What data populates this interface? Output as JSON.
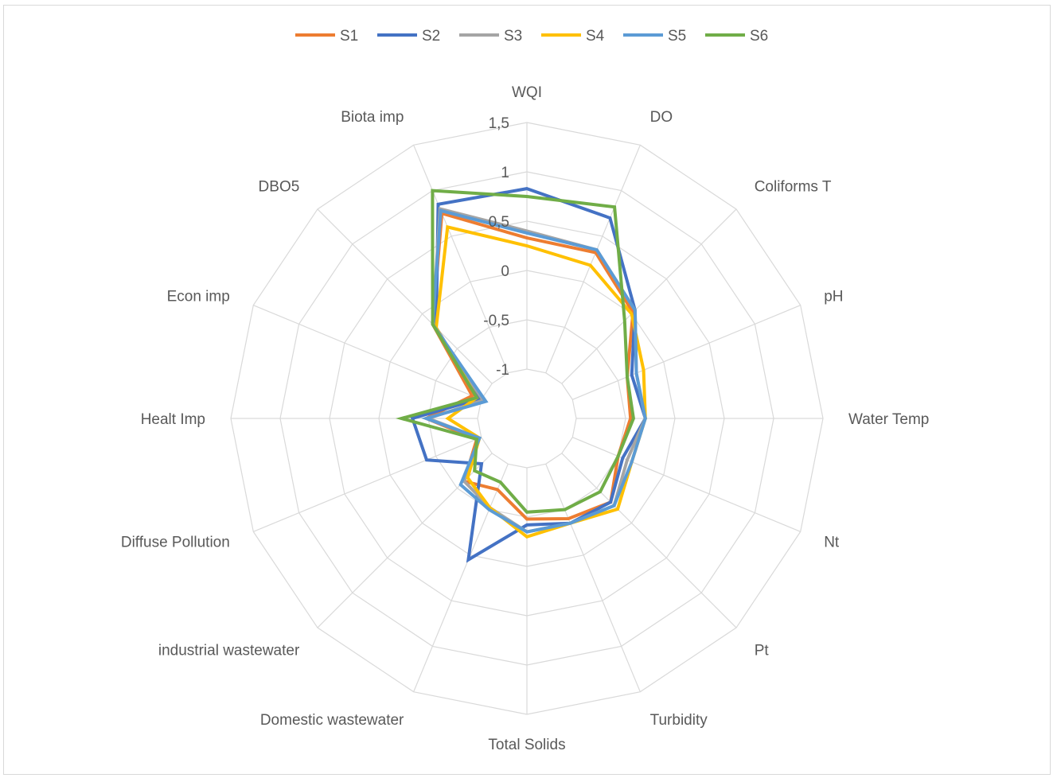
{
  "chart_data": {
    "type": "radar",
    "axes": [
      "WQI",
      "DO",
      "Coliforms T",
      "pH",
      "Water Temp",
      "Nt",
      "Pt",
      "Turbidity",
      "Total Solids",
      "Domestic wastewater",
      "industrial wastewater",
      "Diffuse Pollution",
      "Healt Imp",
      "Econ imp",
      "DBO5",
      "Biota imp"
    ],
    "r_min": -1.5,
    "r_max": 1.5,
    "ticks": [
      -1,
      -0.5,
      0,
      0.5,
      1,
      1.5
    ],
    "tick_labels": [
      "-1",
      "-0,5",
      "0",
      "0,5",
      "1",
      "1,5"
    ],
    "legend_position": "top",
    "grid": true,
    "series": [
      {
        "name": "S1",
        "color": "#ED7D31",
        "values": [
          0.33,
          0.32,
          0.02,
          -0.4,
          -0.45,
          -0.5,
          -0.3,
          -0.4,
          -0.48,
          -0.72,
          -0.6,
          -0.95,
          -0.48,
          -0.9,
          -0.15,
          0.75
        ]
      },
      {
        "name": "S2",
        "color": "#4472C4",
        "values": [
          0.83,
          0.7,
          0.05,
          -0.35,
          -0.3,
          -0.45,
          -0.3,
          -0.35,
          -0.42,
          0.05,
          -0.85,
          -0.4,
          -0.34,
          -0.98,
          -0.2,
          0.85
        ]
      },
      {
        "name": "S3",
        "color": "#A5A5A5",
        "values": [
          0.4,
          0.35,
          0.05,
          -0.3,
          -0.3,
          -0.4,
          -0.25,
          -0.35,
          -0.35,
          -0.52,
          -0.6,
          -0.98,
          -0.5,
          -1.02,
          -0.15,
          0.8
        ]
      },
      {
        "name": "S4",
        "color": "#FFC000",
        "values": [
          0.25,
          0.18,
          0.0,
          -0.22,
          -0.3,
          -0.35,
          -0.2,
          -0.35,
          -0.3,
          -0.52,
          -0.65,
          -0.98,
          -0.7,
          -0.95,
          -0.2,
          0.6
        ]
      },
      {
        "name": "S5",
        "color": "#5B9BD5",
        "values": [
          0.38,
          0.35,
          0.05,
          -0.3,
          -0.3,
          -0.35,
          -0.25,
          -0.35,
          -0.35,
          -0.5,
          -0.55,
          -0.98,
          -0.48,
          -1.05,
          -0.15,
          0.78
        ]
      },
      {
        "name": "S6",
        "color": "#70AD47",
        "values": [
          0.75,
          0.82,
          -0.1,
          -0.4,
          -0.42,
          -0.5,
          -0.45,
          -0.5,
          -0.55,
          -0.8,
          -0.75,
          -0.95,
          -0.23,
          -0.95,
          -0.15,
          1.0
        ]
      }
    ]
  }
}
